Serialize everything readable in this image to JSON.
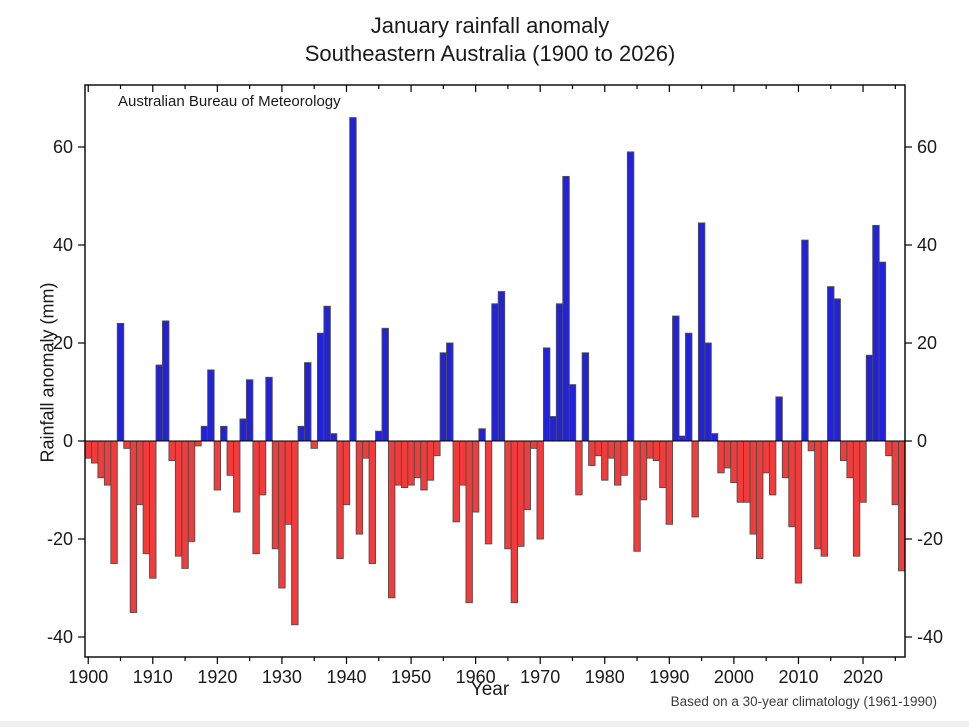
{
  "title": {
    "line1": "January rainfall anomaly",
    "line2": "Southeastern Australia (1900 to 2026)"
  },
  "annotations": {
    "source": "Australian Bureau of Meteorology",
    "footnote": "Based on a 30-year climatology (1961-1990)"
  },
  "axes": {
    "y_label": "Rainfall anomaly (mm)",
    "x_label": "Year",
    "y_ticks": [
      60,
      40,
      20,
      0,
      -20,
      -40
    ],
    "x_tick_labels": [
      1900,
      1910,
      1920,
      1930,
      1940,
      1950,
      1960,
      1970,
      1980,
      1990,
      2000,
      2010,
      2020
    ],
    "minor_tick_step_years": 5
  },
  "colors": {
    "positive_bar": "#2222db",
    "negative_bar": "#f23c3c",
    "bar_border": "#4d4d4d",
    "axis": "#000000"
  },
  "chart_data": {
    "type": "bar",
    "title": "January rainfall anomaly",
    "subtitle": "Southeastern Australia (1900 to 2026)",
    "xlabel": "Year",
    "ylabel": "Rainfall anomaly (mm)",
    "unit": "mm",
    "ylim": [
      -44,
      72.5
    ],
    "grid": false,
    "year_start": 1900,
    "year_end": 2026,
    "values": [
      -3.5,
      -4.5,
      -7.5,
      -9,
      -25,
      24,
      -1.5,
      -35,
      -13,
      -23,
      -28,
      15.5,
      24.5,
      -4,
      -23.5,
      -26,
      -20.5,
      -1,
      3,
      14.5,
      -10,
      3,
      -7,
      -14.5,
      4.5,
      12.5,
      -23,
      -11,
      13,
      -22,
      -30,
      -17,
      -37.5,
      3,
      16,
      -1.5,
      22,
      27.5,
      1.5,
      -24,
      -13,
      66,
      -19,
      -3.5,
      -25,
      2,
      23,
      -32,
      -9,
      -9.5,
      -9,
      -7.5,
      -10,
      -8,
      -3,
      18,
      20,
      -16.5,
      -9,
      -33,
      -14.5,
      2.5,
      -21,
      28,
      30.5,
      -22,
      -33,
      -21.5,
      -14,
      -1.5,
      -20,
      19,
      5,
      28,
      54,
      11.5,
      -11,
      18,
      -5,
      -3,
      -8,
      -3.5,
      -9,
      -7,
      59,
      -22.5,
      -12,
      -3.5,
      -4,
      -9.5,
      -17,
      25.5,
      1,
      22,
      -15.5,
      44.5,
      20,
      1.5,
      -6.5,
      -5.5,
      -8.5,
      -12.5,
      -12.5,
      -19,
      -24,
      -6.5,
      -11,
      9,
      -7.5,
      -17.5,
      -29,
      41,
      -2,
      -22,
      -23.5,
      31.5,
      29,
      -4,
      -7.5,
      -23.5,
      -12.5,
      17.5,
      44,
      36.5,
      -3,
      -13,
      -26.5
    ]
  }
}
